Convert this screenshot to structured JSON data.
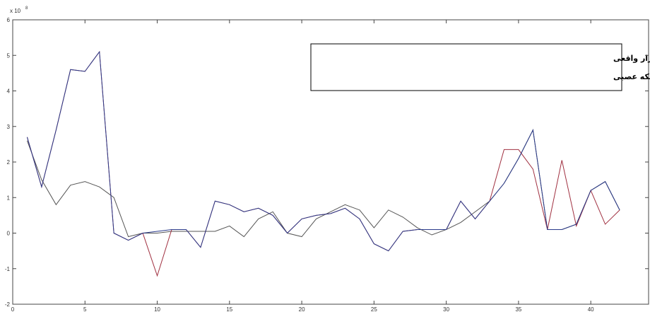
{
  "chart_data": {
    "type": "line",
    "y_multiplier": {
      "base": "x 10",
      "exponent": "8"
    },
    "legend_lines": [
      "خط آبی تلاطم بازار واقعی",
      "خط قرمز تلاطم بازار پیش بینی شده به روش شبکه عصبی"
    ],
    "x": [
      1,
      2,
      3,
      4,
      5,
      6,
      7,
      8,
      9,
      10,
      11,
      12,
      13,
      14,
      15,
      16,
      17,
      18,
      19,
      20,
      21,
      22,
      23,
      24,
      25,
      26,
      27,
      28,
      29,
      30,
      31,
      32,
      33,
      34,
      35,
      36,
      37,
      38,
      39,
      40,
      41,
      42
    ],
    "series": [
      {
        "name": "خط آبی تلاطم بازار واقعی",
        "color": "#2a3a8a",
        "values": [
          2.7,
          1.3,
          2.9,
          4.6,
          4.55,
          5.1,
          0.0,
          -0.2,
          0.0,
          0.05,
          0.1,
          0.1,
          -0.4,
          0.9,
          0.8,
          0.6,
          0.7,
          0.5,
          0.0,
          0.4,
          0.5,
          0.55,
          0.7,
          0.4,
          -0.3,
          -0.5,
          0.05,
          0.1,
          0.1,
          0.1,
          0.9,
          0.4,
          0.9,
          1.4,
          2.1,
          2.9,
          0.1,
          0.1,
          0.25,
          1.2,
          1.45,
          0.65
        ]
      },
      {
        "name": "خط قرمز تلاطم بازار پیش بینی شده به روش شبکه عصبی",
        "color": "#a03040",
        "values": [
          2.7,
          1.3,
          2.9,
          4.6,
          4.55,
          5.1,
          0.0,
          -0.2,
          0.0,
          -1.2,
          0.1,
          0.1,
          -0.4,
          0.9,
          0.8,
          0.6,
          0.7,
          0.5,
          0.0,
          0.4,
          0.5,
          0.55,
          0.7,
          0.4,
          -0.3,
          -0.5,
          0.05,
          0.1,
          0.1,
          0.1,
          0.9,
          0.4,
          0.9,
          2.35,
          2.35,
          1.8,
          0.1,
          2.05,
          0.2,
          1.2,
          0.25,
          0.65
        ]
      },
      {
        "color": "#555555",
        "values": [
          2.6,
          1.5,
          0.8,
          1.35,
          1.45,
          1.3,
          1.0,
          -0.1,
          0.0,
          0.0,
          0.05,
          0.05,
          0.05,
          0.05,
          0.2,
          -0.1,
          0.4,
          0.6,
          0.0,
          -0.1,
          0.4,
          0.6,
          0.8,
          0.65,
          0.15,
          0.65,
          0.45,
          0.15,
          -0.05,
          0.1,
          0.3,
          0.6,
          0.9,
          1.4,
          2.1,
          2.9,
          0.1,
          0.1,
          0.25,
          1.2,
          1.45,
          0.65
        ]
      }
    ],
    "xlim": [
      0,
      44
    ],
    "xticks": [
      0,
      5,
      10,
      15,
      20,
      25,
      30,
      35,
      40
    ],
    "ylim": [
      -2,
      6
    ],
    "yticks": [
      -2,
      -1,
      0,
      1,
      2,
      3,
      4,
      5,
      6
    ]
  }
}
